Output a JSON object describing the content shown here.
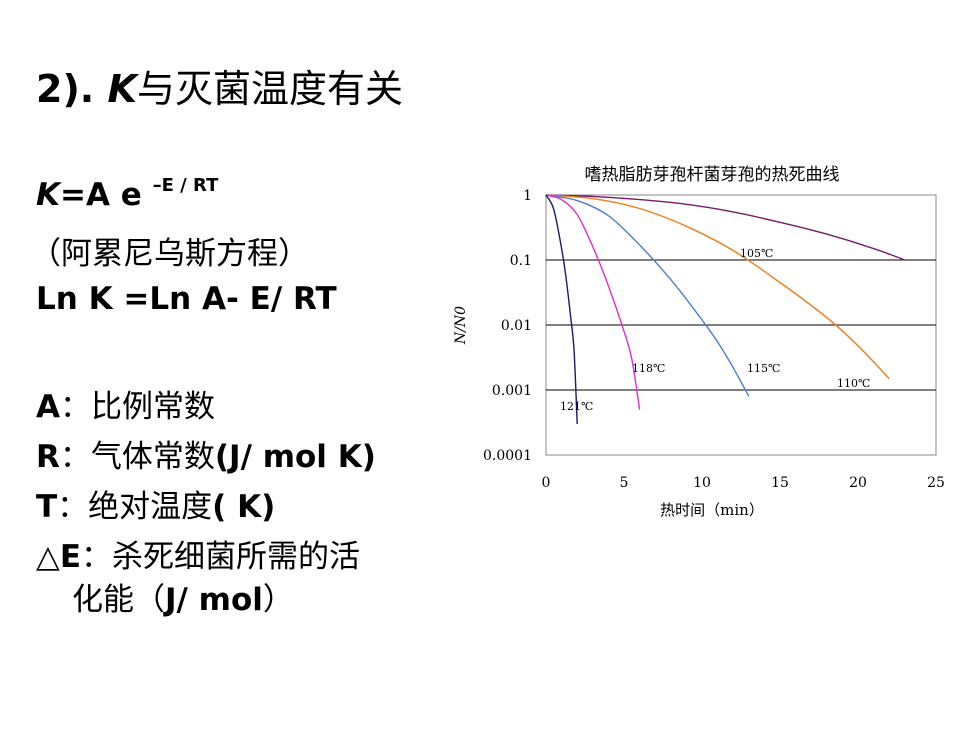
{
  "slide": {
    "title": {
      "prefix": "2). ",
      "k": "K",
      "rest": "与灭菌温度有关"
    },
    "equation": {
      "k": "K",
      "body": "=A e ",
      "exponent": "–E / RT"
    },
    "equation_name": "（阿累尼乌斯方程）",
    "ln_equation": "Ln K =Ln A- E/ RT",
    "definitions": [
      {
        "symbol": "A",
        "sep": "：",
        "text": "比例常数"
      },
      {
        "symbol": "R",
        "sep": "：",
        "text": "气体常数",
        "unit": "(J/ mol K)"
      },
      {
        "symbol": "T",
        "sep": "：",
        "text": "绝对温度",
        "unit": "( K)"
      },
      {
        "symbol": "△E",
        "sep": "：",
        "text": "杀死细菌所需的活"
      }
    ],
    "definition_continued": {
      "text": "化能（",
      "unit": "J/ mol",
      "close": "）"
    }
  },
  "chart_data": {
    "type": "line",
    "title": "嗜热脂肪芽孢杆菌芽孢的热死曲线",
    "xlabel": "热时间（min）",
    "ylabel": "N/N0",
    "x_ticks": [
      "0",
      "5",
      "10",
      "15",
      "20",
      "25"
    ],
    "y_ticks": [
      "1",
      "0.1",
      "0.01",
      "0.001",
      "0.0001"
    ],
    "xlim": [
      0,
      25
    ],
    "ylim": [
      0.0001,
      1
    ],
    "y_scale": "log",
    "grid": "horizontal",
    "series": [
      {
        "name": "105℃",
        "color": "#7a1a6e",
        "x": [
          0,
          3,
          6,
          9,
          12,
          15,
          18,
          21,
          23
        ],
        "y": [
          1,
          0.95,
          0.85,
          0.72,
          0.55,
          0.38,
          0.25,
          0.15,
          0.1
        ]
      },
      {
        "name": "110℃",
        "color": "#f07d1a",
        "x": [
          0,
          3,
          6,
          9,
          12,
          15,
          18,
          20,
          22
        ],
        "y": [
          1,
          0.88,
          0.62,
          0.33,
          0.14,
          0.045,
          0.013,
          0.0048,
          0.0015
        ]
      },
      {
        "name": "115℃",
        "color": "#4a7fd4",
        "x": [
          0,
          2,
          4,
          6,
          8,
          10,
          11,
          12,
          13
        ],
        "y": [
          1,
          0.82,
          0.48,
          0.17,
          0.05,
          0.012,
          0.0055,
          0.0022,
          0.0008
        ]
      },
      {
        "name": "118℃",
        "color": "#e030c8",
        "x": [
          0,
          1,
          2,
          3,
          4,
          5,
          5.5,
          6
        ],
        "y": [
          1,
          0.85,
          0.5,
          0.16,
          0.04,
          0.008,
          0.003,
          0.0005
        ]
      },
      {
        "name": "121℃",
        "color": "#1a1a6e",
        "x": [
          0,
          0.5,
          1,
          1.3,
          1.6,
          1.8,
          2
        ],
        "y": [
          1,
          0.6,
          0.15,
          0.05,
          0.012,
          0.004,
          0.0003
        ]
      }
    ]
  }
}
